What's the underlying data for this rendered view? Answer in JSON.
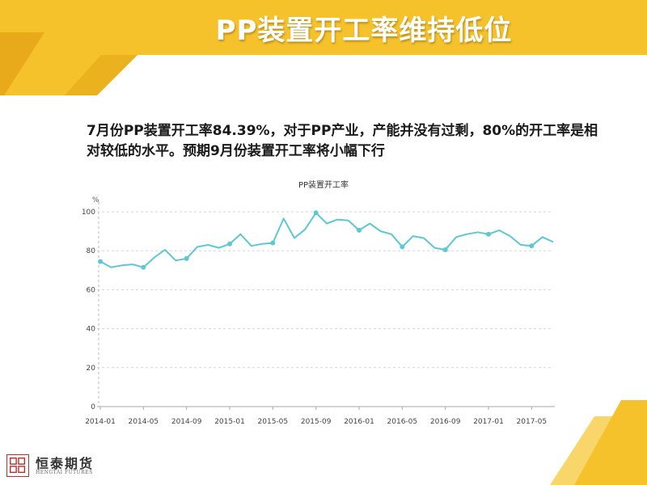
{
  "slide": {
    "title": "PP装置开工率维持低位",
    "subtitle": "7月份PP装置开工率84.39%，对于PP产业，产能并没有过剩，80%的开工率是相对较低的水平。预期9月份装置开工率将小幅下行",
    "accent_color": "#f5c22c",
    "accent_dark": "#e8a91b"
  },
  "footer": {
    "company_name": "恒泰期货",
    "company_en": "HENGTAI FUTURES",
    "logo_color": "#b3322c"
  },
  "chart_data": {
    "type": "line",
    "title": "PP装置开工率",
    "ylabel": "%",
    "xlabel": "",
    "ylim": [
      0,
      100
    ],
    "yticks": [
      0,
      20,
      40,
      60,
      80,
      100
    ],
    "x_tick_labels": [
      "2014-01",
      "2014-05",
      "2014-09",
      "2015-01",
      "2015-05",
      "2015-09",
      "2016-01",
      "2016-05",
      "2016-09",
      "2017-01",
      "2017-05"
    ],
    "grid": true,
    "line_color": "#5bc8d4",
    "x": [
      "2014-01",
      "2014-02",
      "2014-03",
      "2014-04",
      "2014-05",
      "2014-06",
      "2014-07",
      "2014-08",
      "2014-09",
      "2014-10",
      "2014-11",
      "2014-12",
      "2015-01",
      "2015-02",
      "2015-03",
      "2015-04",
      "2015-05",
      "2015-06",
      "2015-07",
      "2015-08",
      "2015-09",
      "2015-10",
      "2015-11",
      "2015-12",
      "2016-01",
      "2016-02",
      "2016-03",
      "2016-04",
      "2016-05",
      "2016-06",
      "2016-07",
      "2016-08",
      "2016-09",
      "2016-10",
      "2016-11",
      "2016-12",
      "2017-01",
      "2017-02",
      "2017-03",
      "2017-04",
      "2017-05",
      "2017-06",
      "2017-07"
    ],
    "series": [
      {
        "values": [
          74.5,
          71.5,
          72.5,
          73,
          71.5,
          76.5,
          80.5,
          75,
          76,
          82,
          83,
          81.5,
          83.5,
          88.5,
          82.5,
          83.5,
          84,
          96.5,
          86.5,
          91,
          99.5,
          94,
          96,
          95.5,
          90.5,
          94,
          90,
          88.5,
          82,
          87.5,
          86.5,
          81.5,
          80.5,
          87,
          88.5,
          89.5,
          88.5,
          90.5,
          87.5,
          83,
          82.5,
          87,
          84.5
        ],
        "markers": [
          0,
          4,
          8,
          12,
          16,
          20,
          24,
          28,
          32,
          36,
          40
        ]
      }
    ]
  }
}
